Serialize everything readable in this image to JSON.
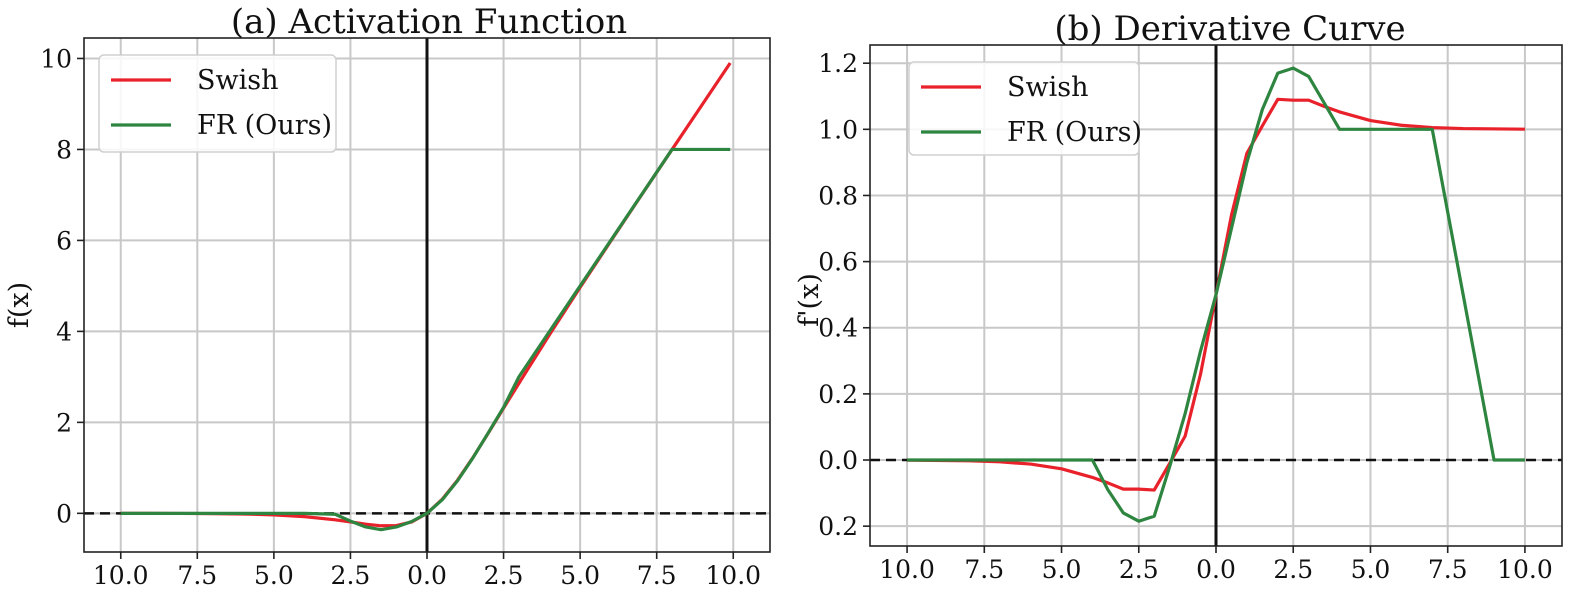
{
  "chart_data": [
    {
      "type": "line",
      "title": "(a) Activation Function",
      "ylabel": "f(x)",
      "xlim": [
        -11.2,
        11.2
      ],
      "ylim": [
        -0.85,
        10.45
      ],
      "xticks": [
        -10.0,
        -7.5,
        -5.0,
        -2.5,
        0.0,
        2.5,
        5.0,
        7.5,
        10.0
      ],
      "xtick_labels": [
        "10.0",
        "7.5",
        "5.0",
        "2.5",
        "0.0",
        "2.5",
        "5.0",
        "7.5",
        "10.0"
      ],
      "yticks": [
        0,
        2,
        4,
        6,
        8,
        10
      ],
      "ytick_labels": [
        "0",
        "2",
        "4",
        "6",
        "8",
        "10"
      ],
      "grid": true,
      "legend": "top-left",
      "series": [
        {
          "name": "Swish",
          "color": "#e8212a",
          "x": [
            -10,
            -9,
            -8,
            -7,
            -6,
            -5,
            -4,
            -3,
            -2.5,
            -2,
            -1.5,
            -1,
            -0.5,
            0,
            0.5,
            1,
            1.5,
            2,
            2.5,
            3,
            4,
            5,
            6,
            7,
            8,
            9,
            9.9
          ],
          "y": [
            -0.0005,
            -0.0011,
            -0.0027,
            -0.0064,
            -0.0148,
            -0.0335,
            -0.0719,
            -0.1423,
            -0.1877,
            -0.2384,
            -0.2736,
            -0.2689,
            -0.1888,
            0,
            0.3112,
            0.7311,
            1.2264,
            1.7616,
            2.3123,
            2.8577,
            3.9281,
            4.9665,
            5.9852,
            6.9936,
            7.9973,
            8.9989,
            9.8995
          ]
        },
        {
          "name": "FR (Ours)",
          "color": "#2e8540",
          "x": [
            -10,
            -4,
            -3,
            -2.5,
            -2,
            -1.5,
            -1,
            -0.5,
            0,
            0.5,
            1,
            1.5,
            2,
            2.5,
            3,
            4,
            5,
            6,
            7,
            8,
            9,
            9.9
          ],
          "y": [
            0,
            0,
            -0.02,
            -0.17,
            -0.3,
            -0.36,
            -0.3,
            -0.18,
            0,
            0.3,
            0.72,
            1.22,
            1.77,
            2.33,
            3.0,
            4.0,
            5.0,
            6.0,
            7.0,
            8.0,
            8.0,
            8.0
          ]
        }
      ],
      "reference_lines": {
        "vertical_x": 0,
        "horizontal_y": 0
      }
    },
    {
      "type": "line",
      "title": "(b) Derivative Curve",
      "ylabel": "f'(x)",
      "xlim": [
        -11.2,
        11.2
      ],
      "ylim": [
        -0.26,
        1.255
      ],
      "xticks": [
        -10.0,
        -7.5,
        -5.0,
        -2.5,
        0.0,
        2.5,
        5.0,
        7.5,
        10.0
      ],
      "xtick_labels": [
        "10.0",
        "7.5",
        "5.0",
        "2.5",
        "0.0",
        "2.5",
        "5.0",
        "7.5",
        "10.0"
      ],
      "yticks": [
        -0.2,
        0.0,
        0.2,
        0.4,
        0.6,
        0.8,
        1.0,
        1.2
      ],
      "ytick_labels": [
        "0.2",
        "0.0",
        "0.2",
        "0.4",
        "0.6",
        "0.8",
        "1.0",
        "1.2"
      ],
      "grid": true,
      "legend": "top-left",
      "series": [
        {
          "name": "Swish",
          "color": "#e8212a",
          "x": [
            -10,
            -8,
            -7,
            -6,
            -5,
            -4,
            -3.5,
            -3,
            -2.5,
            -2,
            -1.5,
            -1,
            -0.5,
            0,
            0.5,
            1,
            1.5,
            2,
            2.5,
            3,
            3.5,
            4,
            5,
            6,
            7,
            8,
            10
          ],
          "y": [
            -0.0004,
            -0.0023,
            -0.0054,
            -0.0123,
            -0.0266,
            -0.0526,
            -0.0693,
            -0.0881,
            -0.0881,
            -0.0908,
            -0.0104,
            0.0723,
            0.2599,
            0.5,
            0.7401,
            0.9277,
            1.0104,
            1.0908,
            1.0881,
            1.0881,
            1.0693,
            1.0526,
            1.0266,
            1.0123,
            1.0054,
            1.0023,
            1.0004
          ]
        },
        {
          "name": "FR (Ours)",
          "color": "#2e8540",
          "x": [
            -10,
            -4,
            -3.5,
            -3,
            -2.5,
            -2,
            -1.5,
            -1,
            -0.5,
            0,
            0.5,
            1,
            1.5,
            2,
            2.5,
            3,
            3.5,
            4,
            5,
            6,
            7,
            8,
            9,
            10
          ],
          "y": [
            0,
            0,
            -0.09,
            -0.16,
            -0.185,
            -0.17,
            -0.02,
            0.14,
            0.33,
            0.5,
            0.7,
            0.9,
            1.06,
            1.17,
            1.185,
            1.16,
            1.08,
            1.0,
            1.0,
            1.0,
            1.0,
            0.5,
            0,
            0
          ]
        }
      ],
      "reference_lines": {
        "vertical_x": 0,
        "horizontal_y": 0
      }
    }
  ]
}
